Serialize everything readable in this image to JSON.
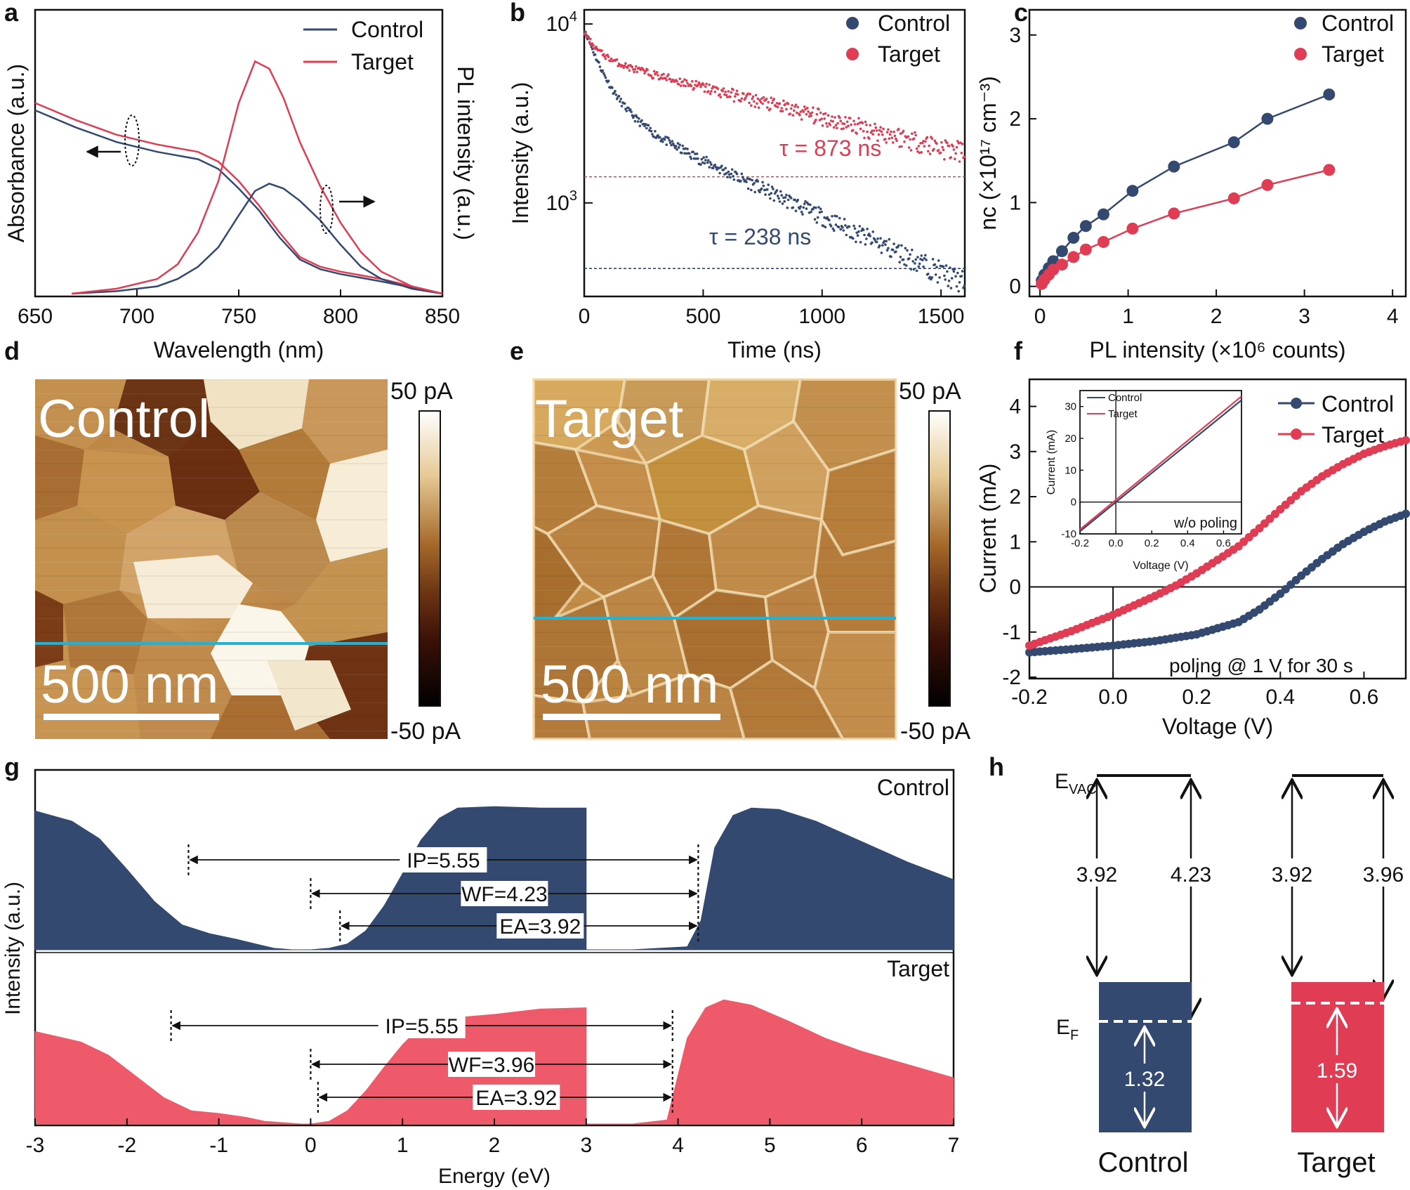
{
  "colors": {
    "control": "#34496f",
    "target": "#e03c53",
    "target_fill": "#ef5a6a",
    "afm_line": "#1fb3d8",
    "black": "#111111"
  },
  "panel_labels": [
    "a",
    "b",
    "c",
    "d",
    "e",
    "f",
    "g",
    "h"
  ],
  "chart_data": [
    {
      "panel": "a",
      "type": "line",
      "xlabel": "Wavelength (nm)",
      "ylabel": "Absorbance (a.u.)",
      "y2label": "PL intensity (a.u.)",
      "xlim": [
        650,
        850
      ],
      "xticks": [
        "650",
        "700",
        "750",
        "800",
        "850"
      ],
      "legend": [
        "Control",
        "Target"
      ],
      "legend_position": "top-right",
      "series": [
        {
          "name": "Control",
          "kind": "absorbance",
          "x": [
            650,
            670,
            690,
            710,
            730,
            740,
            750,
            760,
            770,
            780,
            790,
            800,
            820,
            850
          ],
          "y": [
            0.75,
            0.68,
            0.62,
            0.58,
            0.55,
            0.51,
            0.43,
            0.34,
            0.23,
            0.14,
            0.1,
            0.08,
            0.05,
            0.0
          ]
        },
        {
          "name": "Target",
          "kind": "absorbance",
          "x": [
            650,
            670,
            690,
            710,
            730,
            740,
            750,
            760,
            770,
            780,
            790,
            800,
            820,
            850
          ],
          "y": [
            0.78,
            0.71,
            0.65,
            0.61,
            0.58,
            0.54,
            0.46,
            0.36,
            0.25,
            0.15,
            0.11,
            0.09,
            0.06,
            0.0
          ]
        },
        {
          "name": "Control",
          "kind": "PL",
          "x": [
            668,
            690,
            710,
            720,
            730,
            740,
            750,
            758,
            765,
            772,
            780,
            790,
            800,
            810,
            820,
            835,
            850
          ],
          "y": [
            0.0,
            0.01,
            0.03,
            0.06,
            0.11,
            0.19,
            0.32,
            0.42,
            0.45,
            0.43,
            0.38,
            0.3,
            0.2,
            0.11,
            0.06,
            0.02,
            0.0
          ]
        },
        {
          "name": "Target",
          "kind": "PL",
          "x": [
            668,
            690,
            710,
            720,
            730,
            740,
            750,
            758,
            765,
            772,
            780,
            790,
            800,
            810,
            820,
            835,
            850
          ],
          "y": [
            0.0,
            0.02,
            0.06,
            0.12,
            0.25,
            0.46,
            0.78,
            0.95,
            0.92,
            0.8,
            0.62,
            0.44,
            0.29,
            0.17,
            0.09,
            0.03,
            0.0
          ]
        }
      ]
    },
    {
      "panel": "b",
      "type": "scatter",
      "xlabel": "Time (ns)",
      "ylabel": "Intensity (a.u.)",
      "yscale": "log",
      "xlim": [
        0,
        1600
      ],
      "ylim": [
        300,
        12000
      ],
      "xticks": [
        "0",
        "500",
        "1000",
        "1500"
      ],
      "yticks": [
        {
          "base": "10",
          "exp": "3",
          "value": 1000
        },
        {
          "base": "10",
          "exp": "4",
          "value": 10000
        }
      ],
      "legend": [
        "Control",
        "Target"
      ],
      "legend_position": "top-right",
      "annotations": [
        "τ = 873 ns",
        "τ = 238 ns"
      ],
      "reference_levels": [
        {
          "series": "Target",
          "y": 1400
        },
        {
          "series": "Control",
          "y": 430
        }
      ],
      "series": [
        {
          "name": "Control",
          "decay": [
            {
              "a": 6000,
              "tau": 80
            },
            {
              "a": 3500,
              "tau": 700
            }
          ],
          "tmax": 1600
        },
        {
          "name": "Target",
          "decay": [
            {
              "a": 2500,
              "tau": 60
            },
            {
              "a": 6500,
              "tau": 1300
            }
          ],
          "tmax": 1600
        }
      ]
    },
    {
      "panel": "c",
      "type": "scatter",
      "xlabel": "PL intensity (×10⁶ counts)",
      "ylabel": "nc (×10¹⁷ cm⁻³)",
      "xlim": [
        0,
        4
      ],
      "ylim": [
        0,
        3
      ],
      "xticks": [
        "0",
        "1",
        "2",
        "3",
        "4"
      ],
      "yticks": [
        "0",
        "1",
        "2",
        "3"
      ],
      "legend": [
        "Control",
        "Target"
      ],
      "legend_position": "top-right",
      "series": [
        {
          "name": "Control",
          "x": [
            0.02,
            0.05,
            0.1,
            0.15,
            0.25,
            0.38,
            0.52,
            0.72,
            1.05,
            1.52,
            2.2,
            2.58,
            3.28
          ],
          "y": [
            0.07,
            0.14,
            0.22,
            0.3,
            0.42,
            0.58,
            0.72,
            0.86,
            1.14,
            1.43,
            1.72,
            2.0,
            2.29
          ]
        },
        {
          "name": "Target",
          "x": [
            0.02,
            0.05,
            0.1,
            0.15,
            0.25,
            0.38,
            0.52,
            0.72,
            1.05,
            1.52,
            2.2,
            2.58,
            3.28
          ],
          "y": [
            0.03,
            0.08,
            0.14,
            0.2,
            0.26,
            0.35,
            0.44,
            0.53,
            0.69,
            0.87,
            1.05,
            1.21,
            1.39
          ]
        }
      ]
    },
    {
      "panel": "f",
      "type": "line",
      "xlabel": "Voltage (V)",
      "ylabel": "Current (mA)",
      "xlim": [
        -0.2,
        0.7
      ],
      "ylim": [
        -2,
        4.5
      ],
      "xticks": [
        "-0.2",
        "0.0",
        "0.2",
        "0.4",
        "0.6"
      ],
      "yticks": [
        "-2",
        "-1",
        "0",
        "1",
        "2",
        "3",
        "4"
      ],
      "legend": [
        "Control",
        "Target"
      ],
      "legend_position": "top-right",
      "annotation": "poling @ 1 V for 30 s",
      "series": [
        {
          "name": "Control",
          "x": [
            -0.2,
            -0.1,
            0,
            0.1,
            0.2,
            0.3,
            0.35,
            0.4,
            0.45,
            0.5,
            0.55,
            0.6,
            0.65,
            0.7
          ],
          "y": [
            -1.45,
            -1.38,
            -1.3,
            -1.2,
            -1.05,
            -0.78,
            -0.5,
            -0.15,
            0.25,
            0.62,
            0.95,
            1.22,
            1.45,
            1.62
          ]
        },
        {
          "name": "Target",
          "x": [
            -0.2,
            -0.1,
            0,
            0.1,
            0.15,
            0.2,
            0.3,
            0.35,
            0.4,
            0.45,
            0.5,
            0.55,
            0.6,
            0.65,
            0.7
          ],
          "y": [
            -1.3,
            -0.98,
            -0.62,
            -0.2,
            0.03,
            0.3,
            0.9,
            1.3,
            1.72,
            2.12,
            2.45,
            2.72,
            2.95,
            3.12,
            3.25
          ]
        }
      ],
      "inset": {
        "xlabel": "Voltage (V)",
        "ylabel": "Current (mA)",
        "annotation": "w/o poling",
        "xlim": [
          -0.2,
          0.7
        ],
        "ylim": [
          -10,
          35
        ],
        "xticks": [
          "-0.2",
          "0.0",
          "0.2",
          "0.4",
          "0.6"
        ],
        "yticks": [
          "-10",
          "0",
          "10",
          "20",
          "30"
        ],
        "legend": [
          "Control",
          "Target"
        ],
        "series": [
          {
            "name": "Control",
            "x": [
              -0.2,
              0.7
            ],
            "y": [
              -9.2,
              32.0
            ]
          },
          {
            "name": "Target",
            "x": [
              -0.2,
              0.7
            ],
            "y": [
              -8.6,
              33.2
            ]
          }
        ]
      }
    },
    {
      "panel": "g",
      "type": "area",
      "xlabel": "Energy (eV)",
      "ylabel": "Intensity (a.u.)",
      "xlim": [
        -3,
        7
      ],
      "xticks": [
        "-3",
        "-2",
        "-1",
        "0",
        "1",
        "2",
        "3",
        "4",
        "5",
        "6",
        "7"
      ],
      "series": [
        {
          "name": "Control",
          "x": [
            -3,
            -2.6,
            -2.3,
            -2.0,
            -1.7,
            -1.4,
            -1.1,
            -0.8,
            -0.6,
            -0.4,
            -0.2,
            0,
            0.2,
            0.4,
            0.6,
            0.8,
            1.0,
            1.2,
            1.4,
            1.6,
            2.0,
            2.5,
            3.0,
            3.0,
            3.5,
            4.1,
            4.25,
            4.4,
            4.6,
            4.8,
            5.1,
            5.5,
            6.0,
            6.5,
            7.0
          ],
          "y": [
            0.95,
            0.88,
            0.76,
            0.55,
            0.33,
            0.17,
            0.11,
            0.07,
            0.04,
            0.01,
            0.0,
            0.0,
            0.01,
            0.04,
            0.13,
            0.3,
            0.52,
            0.75,
            0.9,
            0.97,
            0.98,
            0.97,
            0.97,
            0.0,
            0.0,
            0.02,
            0.2,
            0.7,
            0.92,
            0.97,
            0.96,
            0.88,
            0.74,
            0.6,
            0.48
          ],
          "annotations": [
            {
              "label": "IP=5.55",
              "from": -1.33,
              "to": 4.22
            },
            {
              "label": "WF=4.23",
              "from": 0.0,
              "to": 4.22
            },
            {
              "label": "EA=3.92",
              "from": 0.32,
              "to": 4.22
            }
          ]
        },
        {
          "name": "Target",
          "x": [
            -3,
            -2.5,
            -2.2,
            -1.9,
            -1.6,
            -1.3,
            -1.0,
            -0.7,
            -0.5,
            -0.3,
            -0.1,
            0,
            0.2,
            0.4,
            0.6,
            0.8,
            1.0,
            1.2,
            1.5,
            2.0,
            2.5,
            3.0,
            3.0,
            3.5,
            3.88,
            4.1,
            4.3,
            4.5,
            4.8,
            5.2,
            5.6,
            6.0,
            6.5,
            7.0
          ],
          "y": [
            0.7,
            0.62,
            0.52,
            0.36,
            0.2,
            0.1,
            0.08,
            0.05,
            0.02,
            0.01,
            0.0,
            0.0,
            0.02,
            0.1,
            0.25,
            0.43,
            0.6,
            0.74,
            0.8,
            0.83,
            0.87,
            0.88,
            0.0,
            0.0,
            0.03,
            0.65,
            0.88,
            0.94,
            0.9,
            0.78,
            0.65,
            0.55,
            0.45,
            0.35
          ],
          "annotations": [
            {
              "label": "IP=5.55",
              "from": -1.52,
              "to": 3.94
            },
            {
              "label": "WF=3.96",
              "from": 0.0,
              "to": 3.94
            },
            {
              "label": "EA=3.92",
              "from": 0.08,
              "to": 3.94
            }
          ]
        }
      ]
    },
    {
      "panel": "h",
      "type": "diagram",
      "evac_label": "E",
      "evac_sub": "VAC",
      "ef_label": "E",
      "ef_sub": "F",
      "groups": [
        {
          "name": "Control",
          "ea": "3.92",
          "wf": "4.23",
          "gap": "1.32"
        },
        {
          "name": "Target",
          "ea": "3.92",
          "wf": "3.96",
          "gap": "1.59"
        }
      ]
    }
  ],
  "afm": {
    "scalebar_label": "500 nm",
    "colorbar_max": "50 pA",
    "colorbar_min": "-50 pA",
    "panels": [
      {
        "panel": "d",
        "title": "Control"
      },
      {
        "panel": "e",
        "title": "Target"
      }
    ]
  }
}
